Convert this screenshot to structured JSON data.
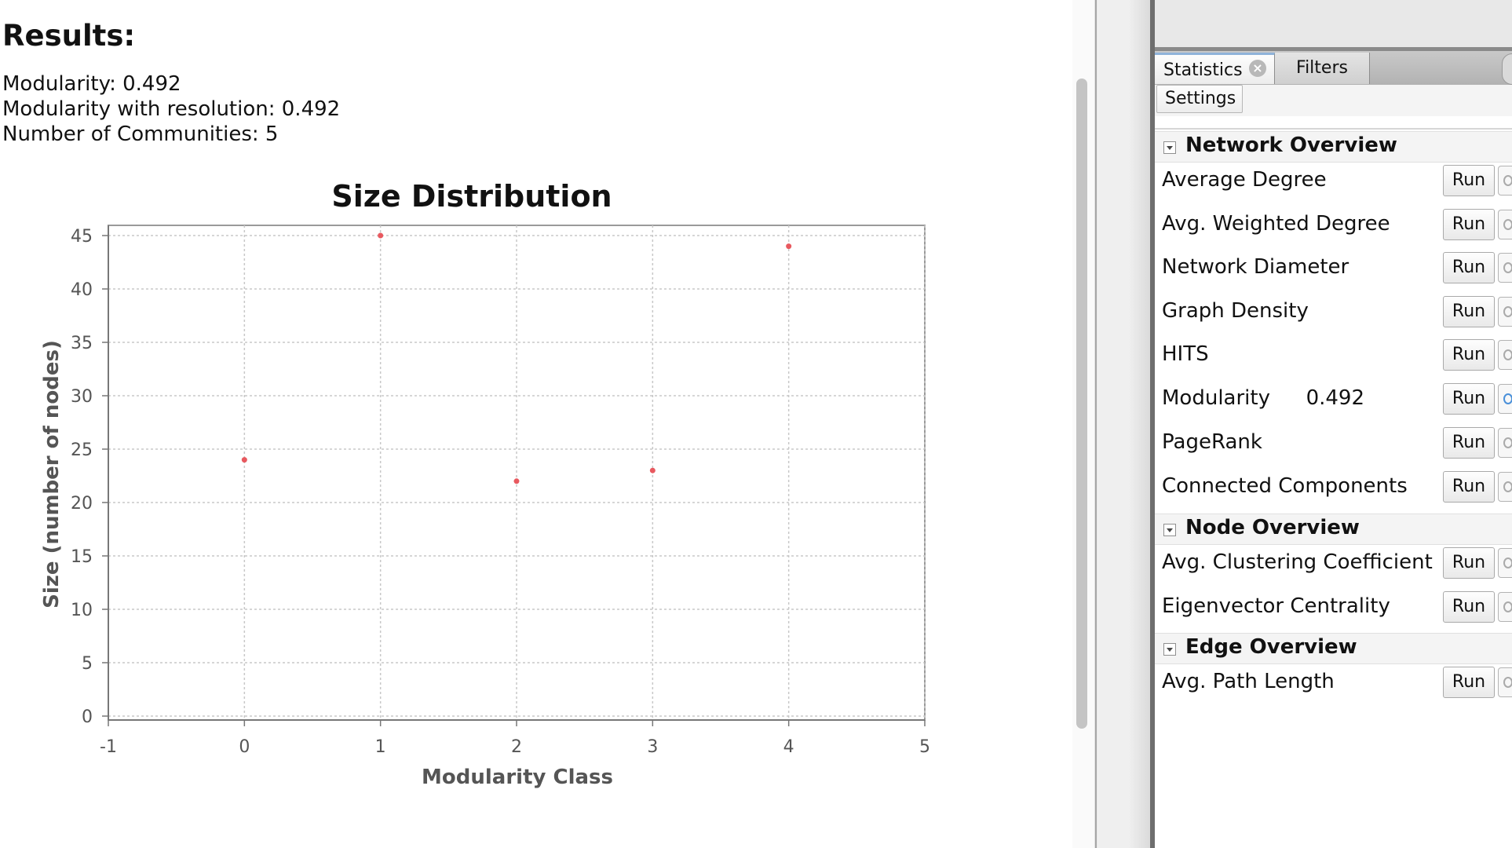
{
  "report": {
    "title": "Results:",
    "lines": [
      "Modularity: 0.492",
      "Modularity with resolution: 0.492",
      "Number of Communities: 5"
    ]
  },
  "chart_data": {
    "type": "scatter",
    "title": "Size Distribution",
    "xlabel": "Modularity Class",
    "ylabel": "Size (number of nodes)",
    "x": [
      0,
      1,
      2,
      3,
      4
    ],
    "y": [
      24,
      45,
      22,
      23,
      44
    ],
    "xlim": [
      -1,
      5
    ],
    "ylim": [
      0,
      45
    ],
    "xticks": [
      -1,
      0,
      1,
      2,
      3,
      4,
      5
    ],
    "yticks": [
      0,
      5,
      10,
      15,
      20,
      25,
      30,
      35,
      40,
      45
    ],
    "grid": true,
    "point_color": "#e8595f"
  },
  "panel": {
    "tabs": [
      "Statistics",
      "Filters"
    ],
    "settings_label": "Settings",
    "run_label": "Run",
    "sections": [
      {
        "title": "Network Overview",
        "metrics": [
          {
            "label": "Average Degree",
            "value": ""
          },
          {
            "label": "Avg. Weighted Degree",
            "value": ""
          },
          {
            "label": "Network Diameter",
            "value": ""
          },
          {
            "label": "Graph Density",
            "value": ""
          },
          {
            "label": "HITS",
            "value": ""
          },
          {
            "label": "Modularity",
            "value": "0.492"
          },
          {
            "label": "PageRank",
            "value": ""
          },
          {
            "label": "Connected Components",
            "value": ""
          }
        ]
      },
      {
        "title": "Node Overview",
        "metrics": [
          {
            "label": "Avg. Clustering Coefficient",
            "value": ""
          },
          {
            "label": "Eigenvector Centrality",
            "value": ""
          }
        ]
      },
      {
        "title": "Edge Overview",
        "metrics": [
          {
            "label": "Avg. Path Length",
            "value": ""
          }
        ]
      }
    ]
  }
}
